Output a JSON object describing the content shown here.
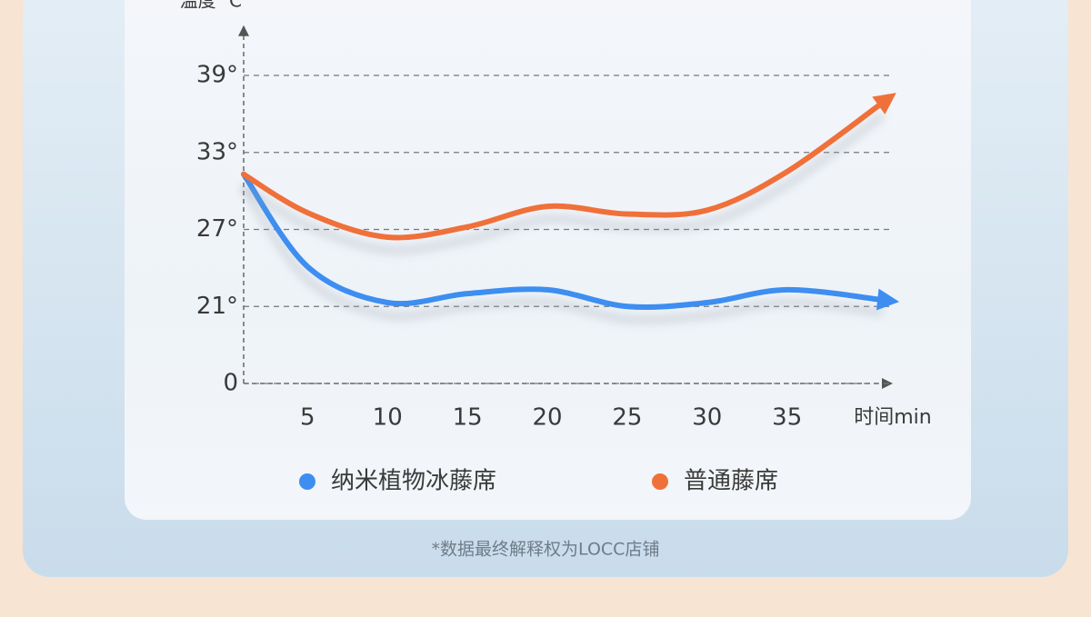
{
  "chart_data": {
    "type": "line",
    "y_axis_title": "温度 ℃",
    "x_axis_title": "时间min",
    "x": [
      1,
      5,
      10,
      15,
      20,
      25,
      30,
      35,
      41
    ],
    "series": [
      {
        "name": "纳米植物冰藤席",
        "color": "#3d8ef0",
        "values": [
          31.3,
          24.1,
          21.3,
          22.0,
          22.3,
          21.0,
          21.3,
          22.3,
          21.5
        ]
      },
      {
        "name": "普通藤席",
        "color": "#f0703a",
        "values": [
          31.3,
          28.3,
          26.4,
          27.2,
          28.8,
          28.2,
          28.5,
          31.5,
          36.9
        ]
      }
    ],
    "xlim": [
      1,
      41.5
    ],
    "xticks": [
      5,
      10,
      15,
      20,
      25,
      30,
      35
    ],
    "ylim": [
      0,
      41
    ],
    "yticks": [
      0,
      {
        "value": 21,
        "label": "21°"
      },
      {
        "value": 27,
        "label": "27°"
      },
      {
        "value": 33,
        "label": "33°"
      },
      {
        "value": 39,
        "label": "39°"
      }
    ],
    "y_axis_break": true,
    "grid": true,
    "footnote": "*数据最终解释权为LOCC店铺"
  }
}
